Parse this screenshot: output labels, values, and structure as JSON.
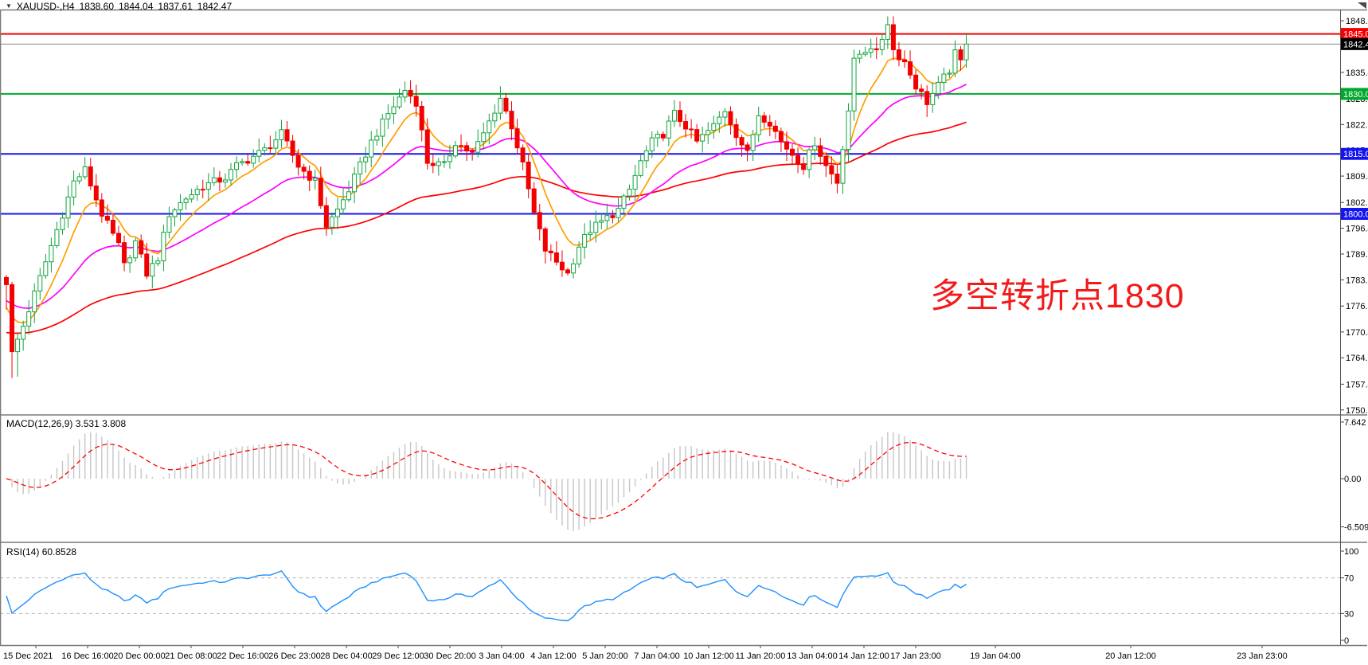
{
  "title": {
    "symbol_period": "XAUUSD-,H4",
    "open": "1838.60",
    "high": "1844.04",
    "low": "1837.61",
    "close": "1842.47"
  },
  "annotation": {
    "text": "多空转折点1830",
    "color": "#f21b1b"
  },
  "colors": {
    "bull_candle": "#10a33c",
    "bear_candle": "#f20000",
    "ma_fast": "#ff9f00",
    "ma_medium": "#ff00ff",
    "ma_slow": "#ff0000",
    "macd_histogram": "#c6c6c6",
    "macd_signal": "#ff0000",
    "rsi_line": "#1e90ff",
    "level_dash": "#b5b5b5",
    "axis_border": "#7a7a7a",
    "current_price_line": "#8a8a8a"
  },
  "price_axis": {
    "ticks": [
      "1848.30",
      "1841.85",
      "1835.40",
      "1828.80",
      "1822.35",
      "1815.90",
      "1809.45",
      "1802.85",
      "1796.40",
      "1789.95",
      "1783.50",
      "1776.95",
      "1770.45",
      "1764.00",
      "1757.40",
      "1750.95"
    ]
  },
  "price_markers": [
    {
      "label": "1845.00",
      "price": 1845.0,
      "bg": "#f40000",
      "line": "#f40000",
      "lw": 2
    },
    {
      "label": "1842.47",
      "price": 1842.47,
      "bg": "#000000",
      "line": "#8a8a8a",
      "lw": 1
    },
    {
      "label": "1830.00",
      "price": 1830.0,
      "bg": "#00a82d",
      "line": "#00a82d",
      "lw": 2
    },
    {
      "label": "1815.00",
      "price": 1815.0,
      "bg": "#1414f0",
      "line": "#1414f0",
      "lw": 2
    },
    {
      "label": "1800.00",
      "price": 1800.0,
      "bg": "#1414f0",
      "line": "#1414f0",
      "lw": 2
    }
  ],
  "time_axis": {
    "labels": [
      "15 Dec 2021",
      "16 Dec 16:00",
      "20 Dec 00:00",
      "21 Dec 08:00",
      "22 Dec 16:00",
      "26 Dec 23:00",
      "28 Dec 04:00",
      "29 Dec 12:00",
      "30 Dec 20:00",
      "3 Jan 04:00",
      "4 Jan 12:00",
      "5 Jan 20:00",
      "7 Jan 04:00",
      "10 Jan 12:00",
      "11 Jan 20:00",
      "13 Jan 04:00",
      "14 Jan 12:00",
      "17 Jan 23:00",
      "19 Jan 04:00",
      "20 Jan 12:00",
      "23 Jan 23:00"
    ]
  },
  "macd_pane": {
    "name": "MACD(12,26,9)",
    "values": "3.531 3.808",
    "ticks": [
      "7.642",
      "0.00",
      "-6.509"
    ]
  },
  "rsi_pane": {
    "name": "RSI(14)",
    "value": "60.8528",
    "ticks": [
      "100",
      "70",
      "30",
      "0"
    ]
  },
  "chart_data": {
    "type": "candlestick",
    "symbol": "XAUUSD-",
    "timeframe": "H4",
    "title": "XAUUSD-,H4 1838.60 1844.04 1837.61 1842.47",
    "current_ohlc": {
      "open": 1838.6,
      "high": 1844.04,
      "low": 1837.61,
      "close": 1842.47
    },
    "y_axis": {
      "visible_range": [
        1750.95,
        1851.1
      ],
      "tick_step": 6.45,
      "grid": false
    },
    "x_axis": {
      "first_label": "15 Dec 2021",
      "last_label": "23 Jan 23:00"
    },
    "horizontal_levels": [
      {
        "price": 1845.0,
        "color": "#f40000",
        "role": "resistance"
      },
      {
        "price": 1842.47,
        "color": "#8a8a8a",
        "role": "current-price"
      },
      {
        "price": 1830.0,
        "color": "#00a82d",
        "role": "pivot"
      },
      {
        "price": 1815.0,
        "color": "#1414f0",
        "role": "support"
      },
      {
        "price": 1800.0,
        "color": "#1414f0",
        "role": "support"
      }
    ],
    "candle_count": 172,
    "close_path_anchors": [
      [
        0,
        1783
      ],
      [
        1,
        1765
      ],
      [
        3,
        1772
      ],
      [
        7,
        1788
      ],
      [
        12,
        1808
      ],
      [
        14,
        1811
      ],
      [
        17,
        1800
      ],
      [
        20,
        1792
      ],
      [
        21,
        1787
      ],
      [
        23,
        1793
      ],
      [
        25,
        1785
      ],
      [
        27,
        1789
      ],
      [
        29,
        1800
      ],
      [
        32,
        1804
      ],
      [
        35,
        1807
      ],
      [
        39,
        1809
      ],
      [
        41,
        1812
      ],
      [
        46,
        1816
      ],
      [
        49,
        1820
      ],
      [
        52,
        1812
      ],
      [
        55,
        1808
      ],
      [
        57,
        1797
      ],
      [
        59,
        1801
      ],
      [
        61,
        1806
      ],
      [
        63,
        1812
      ],
      [
        65,
        1818
      ],
      [
        68,
        1825
      ],
      [
        71,
        1831
      ],
      [
        73,
        1828
      ],
      [
        75,
        1813
      ],
      [
        78,
        1812
      ],
      [
        80,
        1818
      ],
      [
        83,
        1815
      ],
      [
        85,
        1820
      ],
      [
        88,
        1829
      ],
      [
        90,
        1822
      ],
      [
        92,
        1812
      ],
      [
        94,
        1800
      ],
      [
        96,
        1791
      ],
      [
        98,
        1788
      ],
      [
        100,
        1785
      ],
      [
        102,
        1792
      ],
      [
        104,
        1796
      ],
      [
        106,
        1798
      ],
      [
        109,
        1801
      ],
      [
        111,
        1806
      ],
      [
        113,
        1813
      ],
      [
        115,
        1818
      ],
      [
        117,
        1820
      ],
      [
        119,
        1825
      ],
      [
        121,
        1822
      ],
      [
        123,
        1818
      ],
      [
        126,
        1822
      ],
      [
        128,
        1826
      ],
      [
        130,
        1820
      ],
      [
        132,
        1815
      ],
      [
        134,
        1825
      ],
      [
        136,
        1823
      ],
      [
        138,
        1818
      ],
      [
        140,
        1815
      ],
      [
        142,
        1812
      ],
      [
        144,
        1818
      ],
      [
        146,
        1812
      ],
      [
        148,
        1808
      ],
      [
        150,
        1826
      ],
      [
        151,
        1838
      ],
      [
        152,
        1840
      ],
      [
        154,
        1842
      ],
      [
        155,
        1840
      ],
      [
        157,
        1848
      ],
      [
        158,
        1841
      ],
      [
        160,
        1838
      ],
      [
        162,
        1832
      ],
      [
        164,
        1828
      ],
      [
        166,
        1832
      ],
      [
        168,
        1836
      ],
      [
        169,
        1840
      ],
      [
        170,
        1838
      ],
      [
        171,
        1842
      ]
    ],
    "moving_averages": [
      {
        "name": "fast",
        "color": "#ff9f00"
      },
      {
        "name": "medium",
        "color": "#ff00ff"
      },
      {
        "name": "slow",
        "color": "#ff0000"
      }
    ],
    "macd": {
      "params": [
        12,
        26,
        9
      ],
      "current_macd": 3.531,
      "current_signal": 3.808,
      "axis_max": 7.642,
      "axis_mid": 0.0,
      "axis_min": -6.509
    },
    "rsi": {
      "period": 14,
      "current": 60.8528,
      "levels": [
        70,
        30
      ],
      "range": [
        0,
        100
      ]
    },
    "annotation": {
      "text": "多空转折点1830"
    }
  }
}
